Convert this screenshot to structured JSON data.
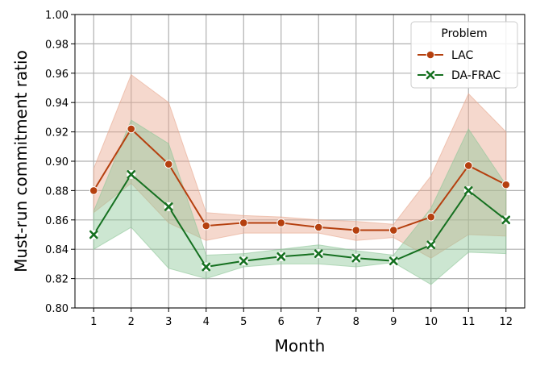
{
  "chart_data": {
    "type": "line",
    "xlabel": "Month",
    "ylabel": "Must-run commitment ratio",
    "categories": [
      "1",
      "2",
      "3",
      "4",
      "5",
      "6",
      "7",
      "8",
      "9",
      "10",
      "11",
      "12"
    ],
    "x": [
      1,
      2,
      3,
      4,
      5,
      6,
      7,
      8,
      9,
      10,
      11,
      12
    ],
    "ylim": [
      0.8,
      1.0
    ],
    "yticks": [
      "0.80",
      "0.82",
      "0.84",
      "0.86",
      "0.88",
      "0.90",
      "0.92",
      "0.94",
      "0.96",
      "0.98",
      "1.00"
    ],
    "grid": true,
    "legend": {
      "title": "Problem",
      "position": "top-right"
    },
    "series": [
      {
        "name": "LAC",
        "color": "#b5400f",
        "band_color": "#e8a890",
        "marker": "circle",
        "values": [
          0.88,
          0.922,
          0.898,
          0.856,
          0.858,
          0.858,
          0.855,
          0.853,
          0.853,
          0.862,
          0.897,
          0.884
        ],
        "lower": [
          0.865,
          0.885,
          0.858,
          0.846,
          0.851,
          0.851,
          0.851,
          0.846,
          0.848,
          0.834,
          0.85,
          0.849
        ],
        "upper": [
          0.895,
          0.959,
          0.94,
          0.865,
          0.863,
          0.862,
          0.86,
          0.859,
          0.857,
          0.89,
          0.946,
          0.92
        ]
      },
      {
        "name": "DA-FRAC",
        "color": "#157020",
        "band_color": "#8fc79a",
        "marker": "x",
        "values": [
          0.85,
          0.891,
          0.869,
          0.828,
          0.832,
          0.835,
          0.837,
          0.834,
          0.832,
          0.843,
          0.88,
          0.86
        ],
        "lower": [
          0.84,
          0.855,
          0.827,
          0.82,
          0.828,
          0.83,
          0.83,
          0.828,
          0.831,
          0.816,
          0.838,
          0.837
        ],
        "upper": [
          0.866,
          0.928,
          0.912,
          0.836,
          0.837,
          0.84,
          0.843,
          0.839,
          0.836,
          0.868,
          0.922,
          0.884
        ]
      }
    ]
  }
}
